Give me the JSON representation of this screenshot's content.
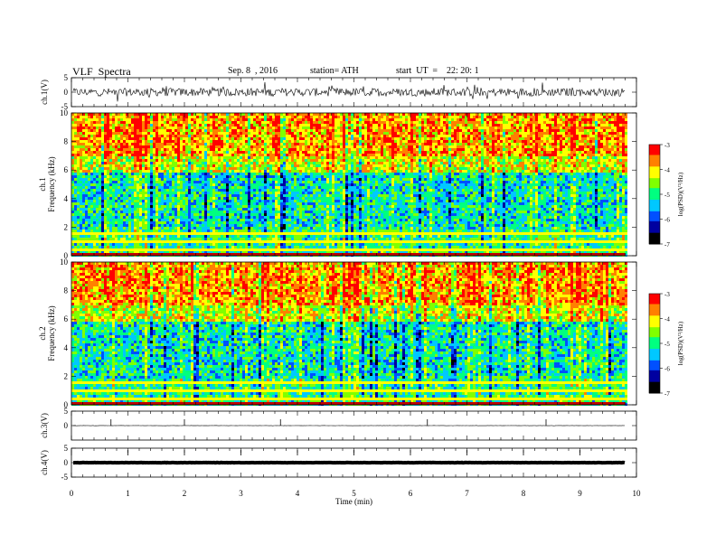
{
  "header": {
    "title": "VLF  Spectra",
    "date": "Sep. 8  , 2016",
    "station": "station= ATH",
    "start": "start  UT  =    22: 20: 1"
  },
  "chart_data": {
    "type": "heatmap",
    "title": "VLF  Spectra",
    "xlabel": "Time  (min)",
    "xlim": [
      0,
      10
    ],
    "x_ticks": [
      "0",
      "1",
      "2",
      "3",
      "4",
      "5",
      "6",
      "7",
      "8",
      "9",
      "10"
    ],
    "data_end_min": 9.8,
    "panels": [
      {
        "name": "ch.1(V)",
        "type": "line",
        "ylabel": "ch.1(V)",
        "ylim": [
          -5,
          5
        ],
        "y_ticks": [
          "5",
          "0",
          "-5"
        ],
        "baseline": 0,
        "amplitude": "about ±1.5 V noise with spikes to about ±3 V"
      },
      {
        "name": "ch.1 spectrogram",
        "type": "heatmap",
        "ylabel_top": "ch.1",
        "ylabel": "Frequency  (kHz)",
        "ylim": [
          0,
          10
        ],
        "y_ticks": [
          "0",
          "2",
          "4",
          "6",
          "8",
          "10"
        ],
        "dominant_band_kHz": [
          7,
          10
        ],
        "low_band_kHz": [
          2,
          6
        ],
        "colorbar": {
          "label": "log(PSD)(V²/Hz)",
          "range": [
            -7,
            -3
          ],
          "ticks": [
            "-3",
            "-4",
            "-5",
            "-6",
            "-7"
          ]
        }
      },
      {
        "name": "ch.2 spectrogram",
        "type": "heatmap",
        "ylabel_top": "ch.2",
        "ylabel": "Frequency  (kHz)",
        "ylim": [
          0,
          10
        ],
        "y_ticks": [
          "0",
          "2",
          "4",
          "6",
          "8",
          "10"
        ],
        "dominant_band_kHz": [
          7,
          10
        ],
        "low_band_kHz": [
          2,
          6
        ],
        "colorbar": {
          "label": "log(PSD)(V²/Hz)",
          "range": [
            -7,
            -3
          ],
          "ticks": [
            "-3",
            "-4",
            "-5",
            "-6",
            "-7"
          ]
        }
      },
      {
        "name": "ch.3(V)",
        "type": "line",
        "ylabel": "ch.3(V)",
        "ylim": [
          -5,
          5
        ],
        "y_ticks": [
          "5",
          "0"
        ],
        "baseline": 0,
        "spikes_min": [
          0.7,
          2.0,
          3.7,
          6.3,
          8.4
        ]
      },
      {
        "name": "ch.4(V)",
        "type": "line",
        "ylabel": "ch.4(V)",
        "ylim": [
          -5,
          5
        ],
        "y_ticks": [
          "5",
          "0",
          "-5"
        ],
        "baseline": 0,
        "note": "thick flat trace"
      }
    ],
    "colormap": [
      "#000000",
      "#0000a0",
      "#0050ff",
      "#00c8ff",
      "#00ff80",
      "#80ff00",
      "#ffff00",
      "#ff8000",
      "#ff0000",
      "#ffffff"
    ]
  }
}
